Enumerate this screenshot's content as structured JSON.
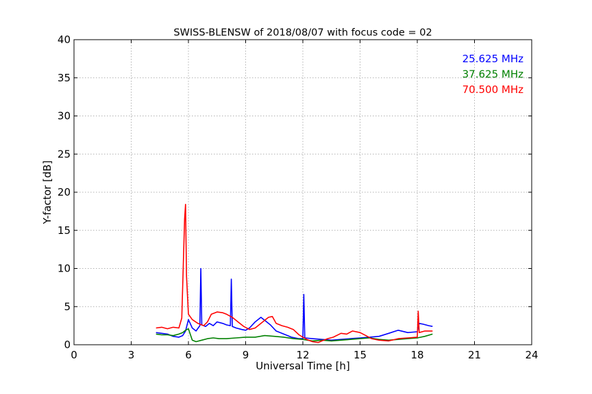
{
  "chart_data": {
    "type": "line",
    "title": "SWISS-BLENSW of 2018/08/07 with focus code = 02",
    "xlabel": "Universal Time [h]",
    "ylabel": "Y-factor [dB]",
    "xlim": [
      0,
      24
    ],
    "ylim": [
      0,
      40
    ],
    "xticks": [
      0,
      3,
      6,
      9,
      12,
      15,
      18,
      21,
      24
    ],
    "yticks": [
      0,
      5,
      10,
      15,
      20,
      25,
      30,
      35,
      40
    ],
    "grid": true,
    "legend_position": "top-right",
    "series": [
      {
        "name": "25.625 MHz",
        "color": "#0000ff",
        "x": [
          4.3,
          4.6,
          4.9,
          5.2,
          5.5,
          5.7,
          5.85,
          6.0,
          6.2,
          6.4,
          6.6,
          6.65,
          6.7,
          6.9,
          7.1,
          7.3,
          7.5,
          7.8,
          8.0,
          8.2,
          8.25,
          8.3,
          8.5,
          8.8,
          9.0,
          9.2,
          9.5,
          9.8,
          10.0,
          10.3,
          10.6,
          11.0,
          11.4,
          11.8,
          12.0,
          12.05,
          12.1,
          12.5,
          13.0,
          13.5,
          14.0,
          14.5,
          15.0,
          15.5,
          16.0,
          16.5,
          17.0,
          17.5,
          18.0,
          18.1,
          18.3,
          18.6,
          18.8
        ],
        "y": [
          1.6,
          1.5,
          1.4,
          1.1,
          1.0,
          1.2,
          1.8,
          3.3,
          2.2,
          1.8,
          2.5,
          10.0,
          2.6,
          2.4,
          2.8,
          2.5,
          3.0,
          2.8,
          2.6,
          2.5,
          8.6,
          2.4,
          2.2,
          2.0,
          1.9,
          2.2,
          3.0,
          3.6,
          3.2,
          2.6,
          1.8,
          1.4,
          1.0,
          0.8,
          0.8,
          6.6,
          0.9,
          0.8,
          0.7,
          0.6,
          0.7,
          0.8,
          0.9,
          1.0,
          1.1,
          1.5,
          1.9,
          1.6,
          1.7,
          2.8,
          2.7,
          2.5,
          2.4
        ]
      },
      {
        "name": "37.625 MHz",
        "color": "#008000",
        "x": [
          4.3,
          4.6,
          4.9,
          5.2,
          5.5,
          5.7,
          5.85,
          6.0,
          6.2,
          6.4,
          6.7,
          7.0,
          7.3,
          7.6,
          8.0,
          8.5,
          9.0,
          9.5,
          10.0,
          10.5,
          11.0,
          11.5,
          12.0,
          12.5,
          13.0,
          13.5,
          14.0,
          14.5,
          15.0,
          15.5,
          16.0,
          16.5,
          17.0,
          17.5,
          18.0,
          18.4,
          18.8
        ],
        "y": [
          1.4,
          1.3,
          1.3,
          1.2,
          1.4,
          1.6,
          1.9,
          2.1,
          0.6,
          0.4,
          0.6,
          0.8,
          0.9,
          0.8,
          0.8,
          0.9,
          1.0,
          1.0,
          1.2,
          1.1,
          1.0,
          0.8,
          0.7,
          0.5,
          0.6,
          0.5,
          0.6,
          0.7,
          0.8,
          0.9,
          0.7,
          0.6,
          0.7,
          0.8,
          0.9,
          1.1,
          1.4
        ]
      },
      {
        "name": "70.500 MHz",
        "color": "#ff0000",
        "x": [
          4.3,
          4.6,
          4.9,
          5.2,
          5.5,
          5.65,
          5.75,
          5.8,
          5.85,
          5.9,
          6.0,
          6.2,
          6.5,
          6.8,
          7.0,
          7.2,
          7.5,
          7.8,
          8.0,
          8.3,
          8.6,
          8.9,
          9.2,
          9.5,
          9.8,
          10.0,
          10.2,
          10.4,
          10.6,
          10.9,
          11.2,
          11.5,
          11.8,
          12.0,
          12.2,
          12.5,
          12.8,
          13.0,
          13.3,
          13.6,
          14.0,
          14.3,
          14.6,
          15.0,
          15.3,
          15.6,
          16.0,
          16.5,
          17.0,
          17.5,
          18.0,
          18.05,
          18.1,
          18.4,
          18.8
        ],
        "y": [
          2.2,
          2.3,
          2.1,
          2.3,
          2.2,
          3.5,
          12.0,
          16.5,
          18.4,
          9.0,
          4.0,
          3.3,
          2.8,
          2.5,
          3.0,
          4.0,
          4.3,
          4.2,
          4.0,
          3.6,
          3.0,
          2.4,
          2.0,
          2.2,
          2.8,
          3.2,
          3.6,
          3.7,
          2.8,
          2.5,
          2.3,
          2.0,
          1.3,
          1.0,
          0.7,
          0.4,
          0.3,
          0.5,
          0.8,
          1.0,
          1.5,
          1.4,
          1.8,
          1.6,
          1.2,
          0.8,
          0.6,
          0.5,
          0.8,
          0.9,
          1.0,
          4.4,
          1.6,
          1.8,
          1.8
        ]
      }
    ]
  }
}
